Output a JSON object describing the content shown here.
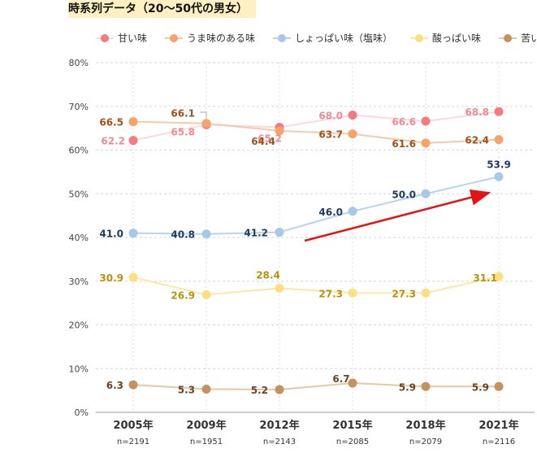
{
  "chart_data": {
    "type": "line",
    "title": "時系列データ（20〜50代の男女）",
    "categories": [
      "2005年",
      "2009年",
      "2012年",
      "2015年",
      "2018年",
      "2021年"
    ],
    "sample_sizes": [
      "n=2191",
      "n=1951",
      "n=2143",
      "n=2085",
      "n=2079",
      "n=2116"
    ],
    "ylim": [
      0,
      80
    ],
    "yticks": [
      "0%",
      "10%",
      "20%",
      "30%",
      "40%",
      "50%",
      "60%",
      "70%",
      "80%"
    ],
    "ytick_values": [
      0,
      10,
      20,
      30,
      40,
      50,
      60,
      70,
      80
    ],
    "xlabel": "",
    "ylabel": "",
    "grid": true,
    "legend_position": "top",
    "annotation": "upward trend arrow for しょっぱい味",
    "series": [
      {
        "name": "甘い味",
        "values": [
          62.2,
          65.8,
          65.2,
          68.0,
          66.6,
          68.8
        ],
        "color": "#f47a82",
        "line_color": "#fcd9dc",
        "label_color": "#f08b92"
      },
      {
        "name": "うま味のある味",
        "values": [
          66.5,
          66.1,
          64.4,
          63.7,
          61.6,
          62.4
        ],
        "color": "#f4a36a",
        "line_color": "#f8c9a5",
        "label_color": "#a1511a"
      },
      {
        "name": "しょっぱい味（塩味）",
        "values": [
          41.0,
          40.8,
          41.2,
          46.0,
          50.0,
          53.9
        ],
        "color": "#a7c8e9",
        "line_color": "#b8d3ee",
        "label_color": "#1f3a5f"
      },
      {
        "name": "酸っぱい味",
        "values": [
          30.9,
          26.9,
          28.4,
          27.3,
          27.3,
          31.1
        ],
        "color": "#fcdf80",
        "line_color": "#fbe8a6",
        "label_color": "#b8920d"
      },
      {
        "name": "苦い味",
        "values": [
          6.3,
          5.3,
          5.2,
          6.7,
          5.9,
          5.9
        ],
        "color": "#c29260",
        "line_color": "#e2c9a4",
        "label_color": "#6b4424"
      }
    ]
  }
}
